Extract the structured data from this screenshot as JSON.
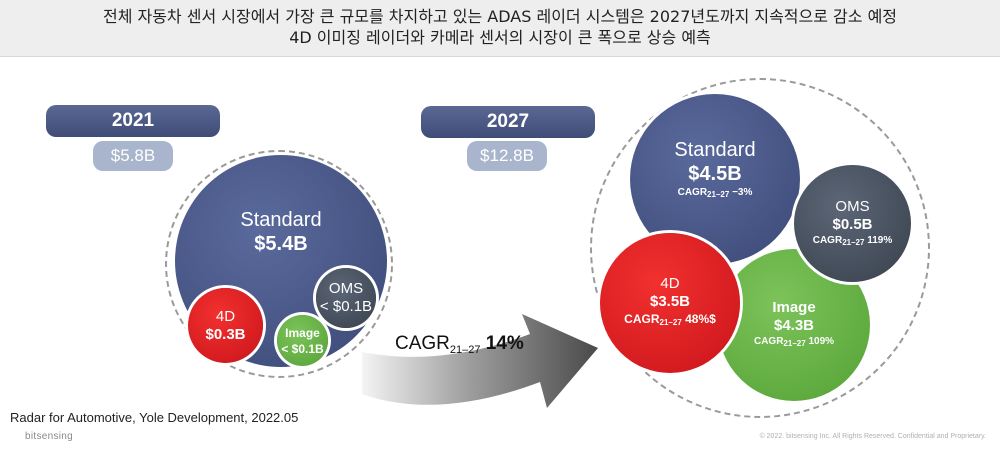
{
  "header": {
    "line1": "전체 자동차 센서 시장에서 가장 큰 규모를 차지하고 있는 ADAS 레이더 시스템은 2027년도까지 지속적으로 감소 예정",
    "line2": "4D 이미징 레이더와 카메라 센서의 시장이 큰 폭으로 상승 예측"
  },
  "left": {
    "year": "2021",
    "total": "$5.8B",
    "standard": {
      "name": "Standard",
      "value": "$5.4B"
    },
    "d4": {
      "name": "4D",
      "value": "$0.3B"
    },
    "oms": {
      "name": "OMS",
      "value": "< $0.1B"
    },
    "image": {
      "name": "Image",
      "value": "< $0.1B"
    }
  },
  "center": {
    "cagr_prefix": "CAGR",
    "cagr_sub": "21–27",
    "cagr_value": "14%"
  },
  "right": {
    "year": "2027",
    "total": "$12.8B",
    "standard": {
      "name": "Standard",
      "value": "$4.5B",
      "cagr_prefix": "CAGR",
      "cagr_sub": "21–27",
      "cagr_value": "−3%"
    },
    "oms": {
      "name": "OMS",
      "value": "$0.5B",
      "cagr_prefix": "CAGR",
      "cagr_sub": "21–27",
      "cagr_value": "119%"
    },
    "d4": {
      "name": "4D",
      "value": "$3.5B",
      "cagr_prefix": "CAGR",
      "cagr_sub": "21–27",
      "cagr_value": "48%$"
    },
    "image": {
      "name": "Image",
      "value": "$4.3B",
      "cagr_prefix": "CAGR",
      "cagr_sub": "21–27",
      "cagr_value": "109%"
    }
  },
  "footer": {
    "source": "Radar for Automotive, Yole Development, 2022.05",
    "logo": "bitsensing",
    "copyright": "© 2022. bitsensing Inc. All Rights Reserved. Confidential and Proprietary."
  },
  "colors": {
    "standard": "#4a5889",
    "oms": "#4a5260",
    "d4": "#e21f24",
    "image": "#6ab548",
    "year_pill": "#4a5785",
    "value_pill": "#a9b5cc"
  }
}
